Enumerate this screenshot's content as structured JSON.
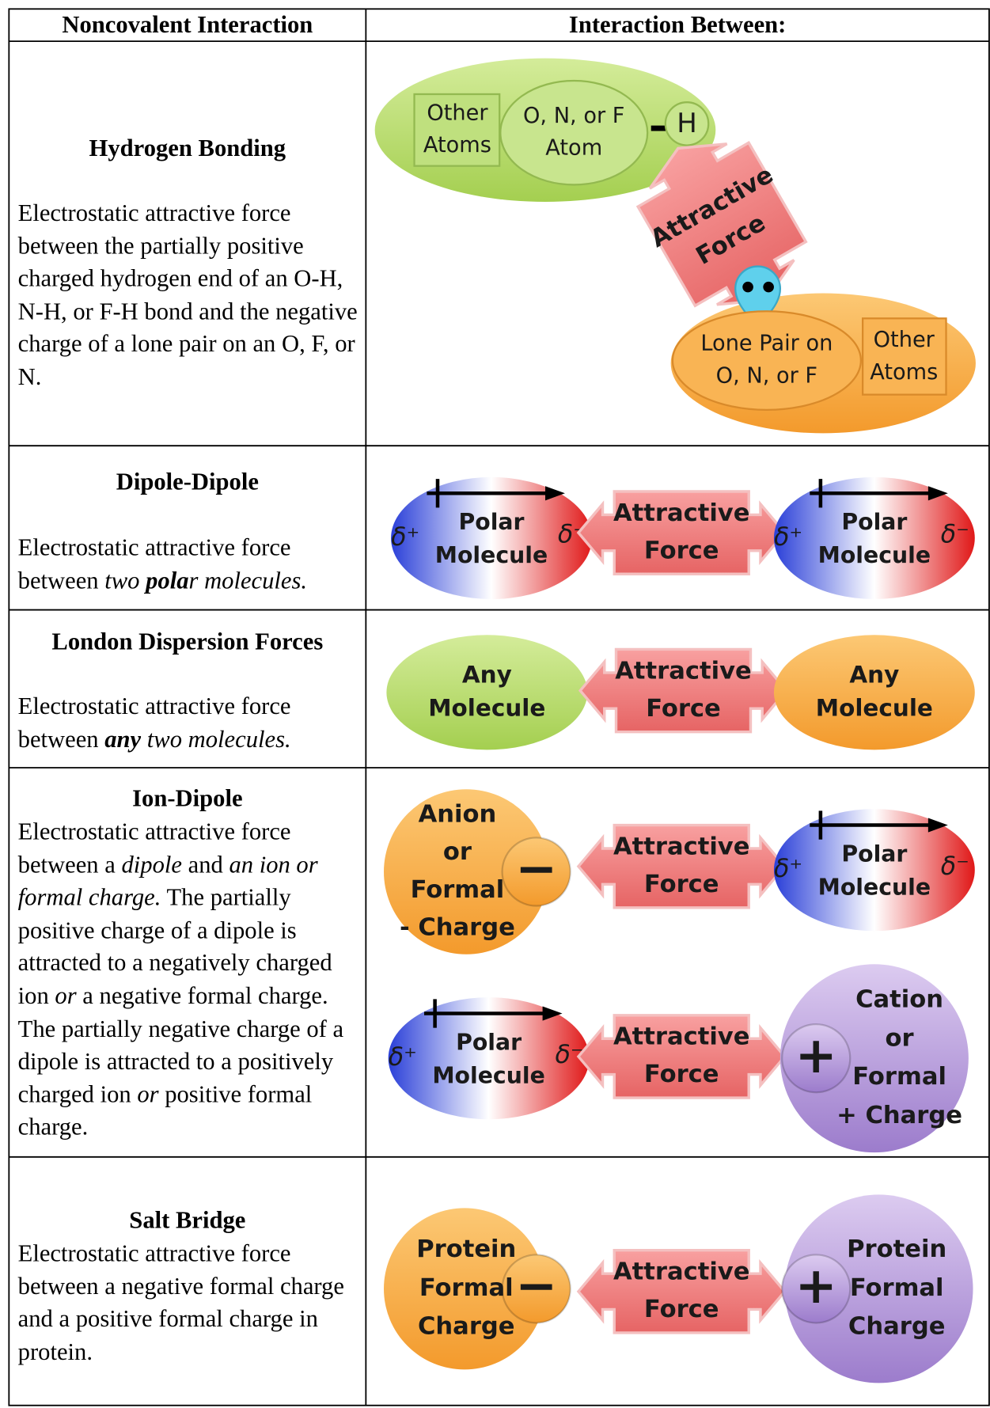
{
  "header": {
    "left": "Noncovalent Interaction",
    "right": "Interaction Between:"
  },
  "rows": [
    {
      "title": "Hydrogen Bonding",
      "description": [
        {
          "text": "Electrostatic attractive force between the partially positive charged hydrogen end of an O-H, N-H, or F-H bond and the negative charge of a lone pair on an O, F, or N."
        }
      ],
      "diagram": {
        "donor_other": [
          "Other",
          "Atoms"
        ],
        "donor_atom": [
          "O, N, or F",
          "Atom"
        ],
        "hydrogen": "H",
        "force": [
          "Attractive",
          "Force"
        ],
        "acceptor_pair": [
          "Lone Pair on",
          "O, N, or F"
        ],
        "acceptor_other": [
          "Other",
          "Atoms"
        ]
      }
    },
    {
      "title": "Dipole-Dipole",
      "description": [
        {
          "text": "Electrostatic attractive force between "
        },
        {
          "text": "two ",
          "style": "italic"
        },
        {
          "text": "pola",
          "style": "bold-italic"
        },
        {
          "text": "r molecules.",
          "style": "italic"
        }
      ],
      "diagram": {
        "left": {
          "delta_pos": "δ⁺",
          "label": [
            "Polar",
            "Molecule"
          ],
          "delta_neg": "δ⁻"
        },
        "force": [
          "Attractive",
          "Force"
        ],
        "right": {
          "delta_pos": "δ⁺",
          "label": [
            "Polar",
            "Molecule"
          ],
          "delta_neg": "δ⁻"
        }
      }
    },
    {
      "title": "London Dispersion Forces",
      "description": [
        {
          "text": "Electrostatic attractive force between "
        },
        {
          "text": "any",
          "style": "bold-italic"
        },
        {
          "text": " two molecules.",
          "style": "italic"
        }
      ],
      "diagram": {
        "left": [
          "Any",
          "Molecule"
        ],
        "force": [
          "Attractive",
          "Force"
        ],
        "right": [
          "Any",
          "Molecule"
        ]
      }
    },
    {
      "title": "Ion-Dipole",
      "description": [
        {
          "text": "Electrostatic attractive force between a "
        },
        {
          "text": "dipole",
          "style": "italic"
        },
        {
          "text": " and "
        },
        {
          "text": "an ion or formal charge.",
          "style": "italic"
        },
        {
          "text": " The partially positive charge of a dipole is attracted to a negatively charged ion "
        },
        {
          "text": "or",
          "style": "italic"
        },
        {
          "text": " a negative formal charge. The partially negative charge of a dipole is attracted to a positively charged ion "
        },
        {
          "text": "or",
          "style": "italic"
        },
        {
          "text": " positive formal charge."
        }
      ],
      "diagrams": [
        {
          "ion": {
            "label": [
              "Anion",
              "or",
              "Formal",
              "- Charge"
            ],
            "sign": "−"
          },
          "force": [
            "Attractive",
            "Force"
          ],
          "polar": {
            "delta_pos": "δ⁺",
            "label": [
              "Polar",
              "Molecule"
            ],
            "delta_neg": "δ⁻"
          }
        },
        {
          "polar": {
            "delta_pos": "δ⁺",
            "label": [
              "Polar",
              "Molecule"
            ],
            "delta_neg": "δ⁻"
          },
          "force": [
            "Attractive",
            "Force"
          ],
          "ion": {
            "label": [
              "Cation",
              "or",
              "Formal",
              "+ Charge"
            ],
            "sign": "+"
          }
        }
      ]
    },
    {
      "title": "Salt Bridge",
      "description": [
        {
          "text": "Electrostatic attractive force between a negative formal charge and a positive formal charge in protein."
        }
      ],
      "diagram": {
        "anion": {
          "label": [
            "Protein",
            "Formal",
            "Charge"
          ],
          "sign": "−"
        },
        "force": [
          "Attractive",
          "Force"
        ],
        "cation": {
          "label": [
            "Protein",
            "Formal",
            "Charge"
          ],
          "sign": "+"
        }
      }
    }
  ]
}
